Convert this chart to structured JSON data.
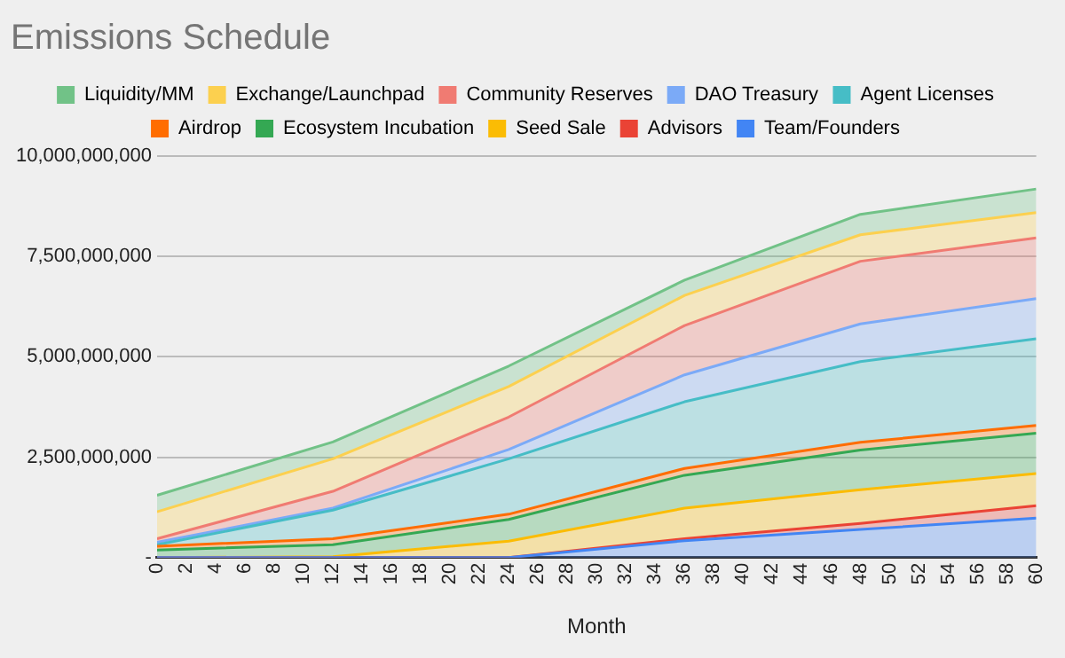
{
  "chart_data": {
    "type": "area",
    "title": "Emissions Schedule",
    "xlabel": "Month",
    "stacked": true,
    "legend": "top",
    "grid": "y",
    "x": [
      0,
      12,
      24,
      36,
      48,
      60
    ],
    "xlim": [
      0,
      60
    ],
    "xticks": [
      0,
      2,
      4,
      6,
      8,
      10,
      12,
      14,
      16,
      18,
      20,
      22,
      24,
      26,
      28,
      30,
      32,
      34,
      36,
      38,
      40,
      42,
      44,
      46,
      48,
      50,
      52,
      54,
      56,
      58,
      60
    ],
    "ylim": [
      0,
      10000000000
    ],
    "yticks": [
      {
        "value": 0,
        "label": "-"
      },
      {
        "value": 2500000000,
        "label": "2,500,000,000"
      },
      {
        "value": 5000000000,
        "label": "5,000,000,000"
      },
      {
        "value": 7500000000,
        "label": "7,500,000,000"
      },
      {
        "value": 10000000000,
        "label": "10,000,000,000"
      }
    ],
    "series": [
      {
        "name": "Team/Founders",
        "color": "#4285f4",
        "values": [
          0,
          0,
          0,
          420000000,
          700000000,
          980000000
        ]
      },
      {
        "name": "Advisors",
        "color": "#ea4335",
        "values": [
          0,
          0,
          0,
          50000000,
          150000000,
          310000000
        ]
      },
      {
        "name": "Seed Sale",
        "color": "#fbbc04",
        "values": [
          0,
          20000000,
          410000000,
          760000000,
          840000000,
          800000000
        ]
      },
      {
        "name": "Ecosystem Incubation",
        "color": "#34a853",
        "values": [
          190000000,
          300000000,
          540000000,
          820000000,
          990000000,
          1010000000
        ]
      },
      {
        "name": "Airdrop",
        "color": "#ff6d01",
        "values": [
          90000000,
          150000000,
          130000000,
          170000000,
          190000000,
          190000000
        ]
      },
      {
        "name": "Agent Licenses",
        "color": "#46bdc6",
        "values": [
          40000000,
          710000000,
          1380000000,
          1660000000,
          2010000000,
          2160000000
        ]
      },
      {
        "name": "DAO Treasury",
        "color": "#7baaf7",
        "values": [
          60000000,
          50000000,
          230000000,
          670000000,
          940000000,
          1000000000
        ]
      },
      {
        "name": "Community Reserves",
        "color": "#f07b72",
        "values": [
          90000000,
          420000000,
          810000000,
          1230000000,
          1560000000,
          1510000000
        ]
      },
      {
        "name": "Exchange/Launchpad",
        "color": "#fcd04f",
        "values": [
          670000000,
          810000000,
          760000000,
          750000000,
          660000000,
          630000000
        ]
      },
      {
        "name": "Liquidity/MM",
        "color": "#71c287",
        "values": [
          410000000,
          420000000,
          510000000,
          380000000,
          510000000,
          590000000
        ]
      }
    ]
  }
}
